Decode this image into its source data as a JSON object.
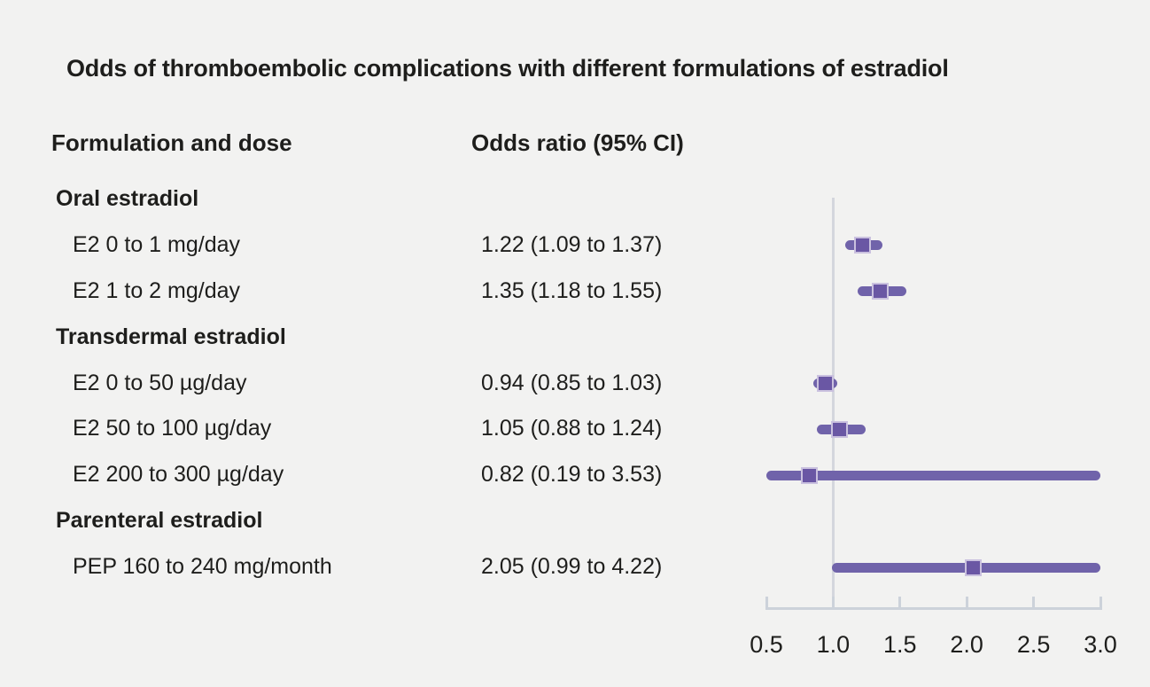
{
  "title": "Odds of thromboembolic complications with different formulations of estradiol",
  "columns": {
    "formulation": "Formulation and dose",
    "odds_ratio": "Odds ratio (95% CI)"
  },
  "colors": {
    "background": "#f2f2f1",
    "text": "#1e1e1c",
    "marker_fill": "#6a57a4",
    "marker_border": "#cac1df",
    "ci_line": "#7063aa",
    "reference_line": "#d4d6dd",
    "axis": "#ccd2da"
  },
  "chart_data": {
    "type": "forest",
    "title": "Odds of thromboembolic complications with different formulations of estradiol",
    "xlabel": "",
    "ylabel": "",
    "axis_range": [
      0.5,
      3.0
    ],
    "ticks": [
      0.5,
      1.0,
      1.5,
      2.0,
      2.5,
      3.0
    ],
    "reference_value": 1.0,
    "grid": false,
    "rows": [
      {
        "label": "Oral estradiol",
        "group": true
      },
      {
        "label": "E2 0 to 1 mg/day",
        "or_text": "1.22 (1.09 to 1.37)",
        "estimate": 1.22,
        "ci_low": 1.09,
        "ci_high": 1.37
      },
      {
        "label": "E2 1 to 2 mg/day",
        "or_text": "1.35 (1.18 to 1.55)",
        "estimate": 1.35,
        "ci_low": 1.18,
        "ci_high": 1.55
      },
      {
        "label": "Transdermal estradiol",
        "group": true
      },
      {
        "label": "E2 0 to 50 µg/day",
        "or_text": "0.94 (0.85 to 1.03)",
        "estimate": 0.94,
        "ci_low": 0.85,
        "ci_high": 1.03
      },
      {
        "label": "E2 50 to 100 µg/day",
        "or_text": "1.05 (0.88 to 1.24)",
        "estimate": 1.05,
        "ci_low": 0.88,
        "ci_high": 1.24
      },
      {
        "label": "E2 200 to 300 µg/day",
        "or_text": "0.82 (0.19 to 3.53)",
        "estimate": 0.82,
        "ci_low": 0.19,
        "ci_high": 3.53
      },
      {
        "label": "Parenteral estradiol",
        "group": true
      },
      {
        "label": "PEP 160 to 240 mg/month",
        "or_text": "2.05 (0.99 to 4.22)",
        "estimate": 2.05,
        "ci_low": 0.99,
        "ci_high": 4.22
      }
    ]
  }
}
